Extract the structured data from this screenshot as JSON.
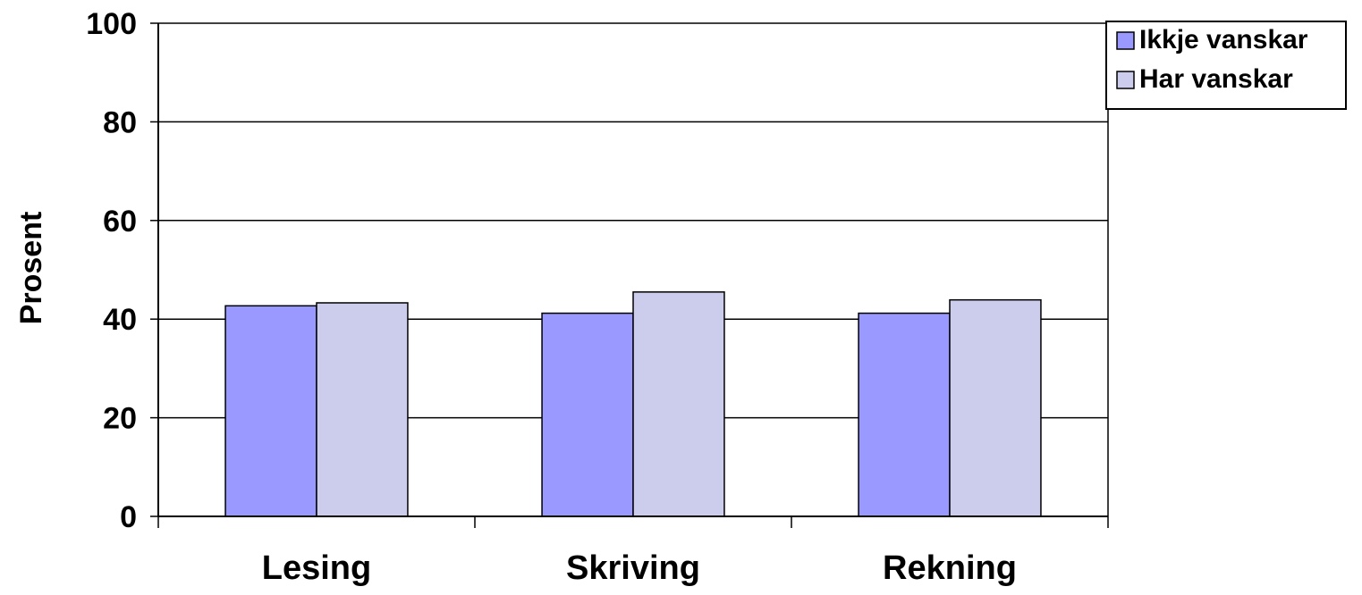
{
  "chart_data": {
    "type": "bar",
    "categories": [
      "Lesing",
      "Skriving",
      "Rekning"
    ],
    "series": [
      {
        "name": "Ikkje vanskar",
        "values": [
          42.7,
          41.2,
          41.2
        ],
        "color": "#9999ff"
      },
      {
        "name": "Har vanskar",
        "values": [
          43.3,
          45.5,
          43.9
        ],
        "color": "#ccccec"
      }
    ],
    "ylabel": "Prosent",
    "xlabel": "",
    "ylim": [
      0,
      100
    ],
    "yticks": [
      0,
      20,
      40,
      60,
      80,
      100
    ],
    "grid": true,
    "legend": "top-right"
  }
}
